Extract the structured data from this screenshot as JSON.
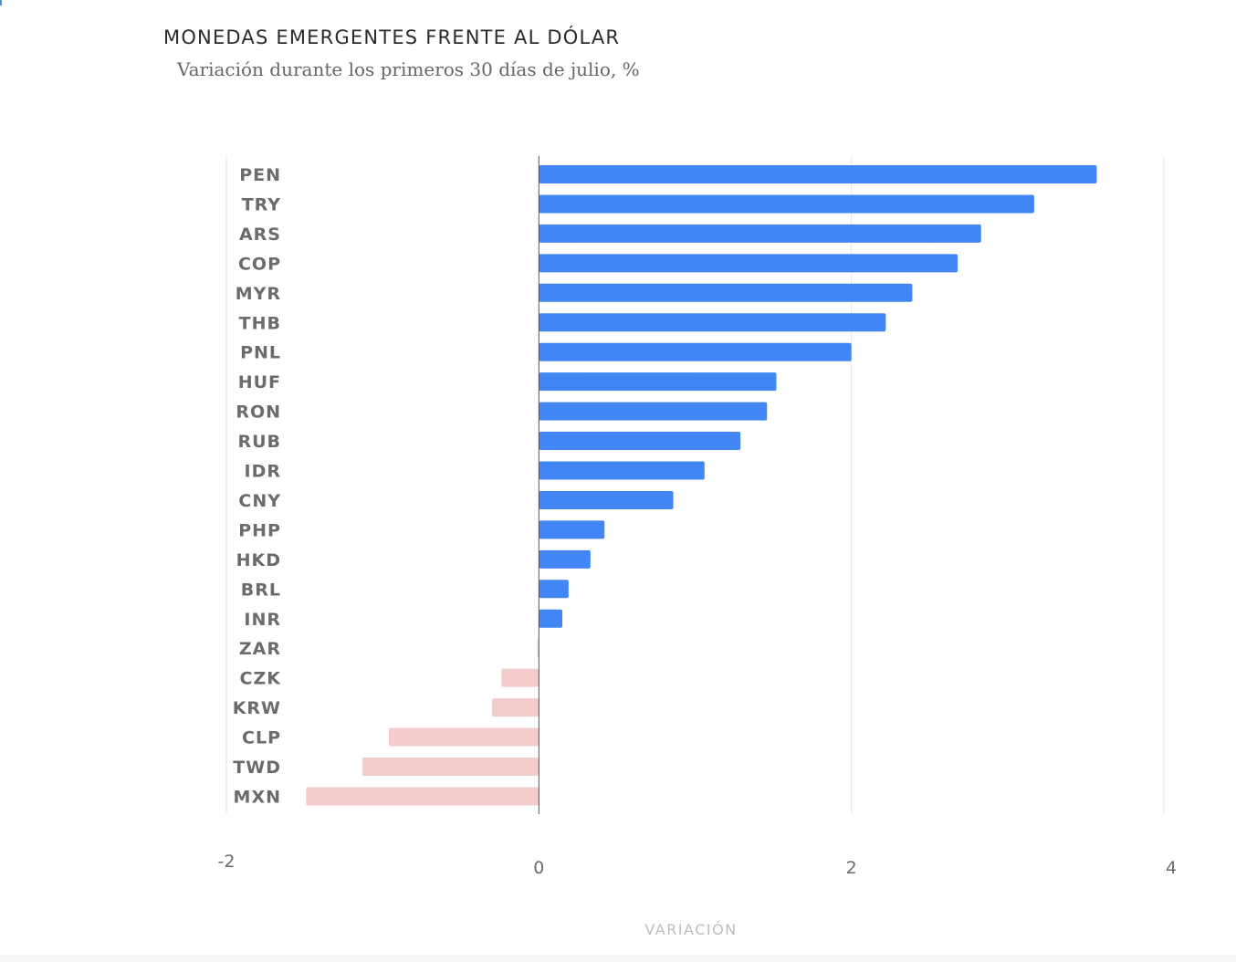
{
  "title": "MONEDAS EMERGENTES FRENTE AL DÓLAR",
  "subtitle": "Variación durante los primeros 30 días de julio, %",
  "colors": {
    "positive": "#4285f4",
    "negative": "#f4cccc",
    "grid": "#e6e6e6",
    "zero_line": "#555555",
    "category_label": "#6b6b6b",
    "tick_label": "#6b6b6b",
    "axis_title": "#bdbdbd"
  },
  "chart_data": {
    "type": "bar",
    "orientation": "horizontal",
    "title": "MONEDAS EMERGENTES FRENTE AL DÓLAR",
    "subtitle": "Variación durante los primeros 30 días de julio, %",
    "xlabel": "VARIACIÓN",
    "ylabel": "",
    "xlim": [
      -2,
      4
    ],
    "xticks": [
      "-2",
      "0",
      "2",
      "4"
    ],
    "grid": true,
    "categories": [
      "PEN",
      "TRY",
      "ARS",
      "COP",
      "MYR",
      "THB",
      "PNL",
      "HUF",
      "RON",
      "RUB",
      "IDR",
      "CNY",
      "PHP",
      "HKD",
      "BRL",
      "INR",
      "ZAR",
      "CZK",
      "KRW",
      "CLP",
      "TWD",
      "MXN"
    ],
    "values": [
      3.57,
      3.17,
      2.83,
      2.68,
      2.39,
      2.22,
      2.0,
      1.52,
      1.46,
      1.29,
      1.06,
      0.86,
      0.42,
      0.33,
      0.19,
      0.15,
      -0.01,
      -0.24,
      -0.3,
      -0.96,
      -1.13,
      -1.49
    ]
  }
}
